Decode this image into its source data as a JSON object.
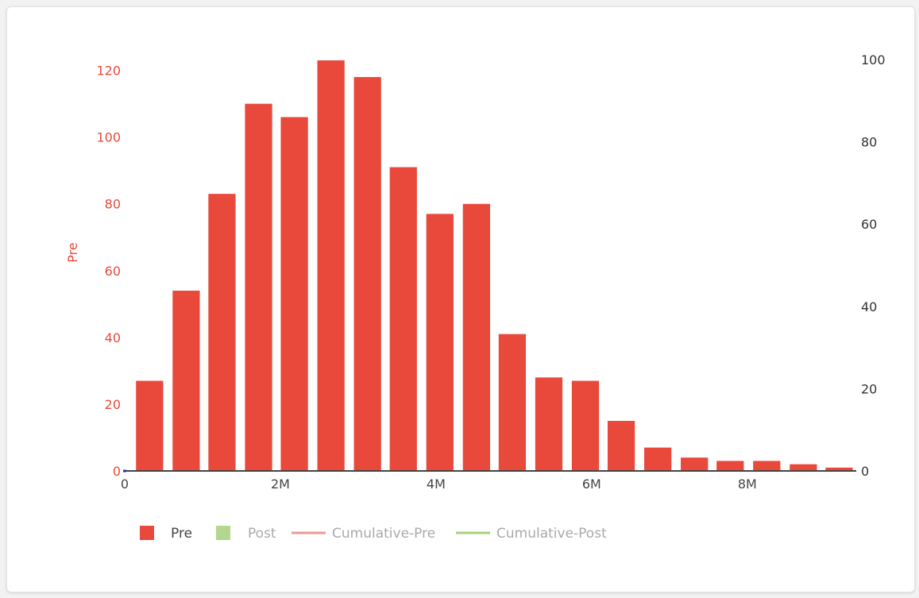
{
  "chart_data": {
    "type": "bar",
    "title": "",
    "xlabel": "",
    "ylabel": "Pre",
    "y2label": "",
    "x_bin_width": 460000,
    "x_bin_centers": [
      320000,
      790000,
      1250000,
      1720000,
      2180000,
      2650000,
      3120000,
      3580000,
      4050000,
      4520000,
      4980000,
      5450000,
      5920000,
      6380000,
      6850000,
      7320000,
      7780000,
      8250000,
      8720000,
      9180000
    ],
    "series": [
      {
        "name": "Pre",
        "type": "bar",
        "color": "#e8493b",
        "visible": true,
        "values": [
          27,
          54,
          83,
          110,
          106,
          123,
          118,
          91,
          77,
          80,
          41,
          28,
          27,
          15,
          7,
          4,
          3,
          3,
          2,
          1
        ]
      },
      {
        "name": "Post",
        "type": "bar",
        "color": "#b5d68f",
        "visible": false,
        "values": []
      },
      {
        "name": "Cumulative-Pre",
        "type": "line",
        "color": "#eb9a93",
        "visible": false,
        "values": []
      },
      {
        "name": "Cumulative-Post",
        "type": "line",
        "color": "#a8d07a",
        "visible": false,
        "values": []
      }
    ],
    "xlim": [
      0,
      9400000
    ],
    "x_ticks": [
      {
        "v": 0,
        "label": "0"
      },
      {
        "v": 2000000,
        "label": "2M"
      },
      {
        "v": 4000000,
        "label": "4M"
      },
      {
        "v": 6000000,
        "label": "6M"
      },
      {
        "v": 8000000,
        "label": "8M"
      }
    ],
    "ylim": [
      0,
      123
    ],
    "y_ticks": [
      {
        "v": 0,
        "label": "0"
      },
      {
        "v": 20,
        "label": "20"
      },
      {
        "v": 40,
        "label": "40"
      },
      {
        "v": 60,
        "label": "60"
      },
      {
        "v": 80,
        "label": "80"
      },
      {
        "v": 100,
        "label": "100"
      },
      {
        "v": 120,
        "label": "120"
      }
    ],
    "y2lim": [
      0,
      100
    ],
    "y2_ticks": [
      {
        "v": 0,
        "label": "0"
      },
      {
        "v": 20,
        "label": "20"
      },
      {
        "v": 40,
        "label": "40"
      },
      {
        "v": 60,
        "label": "60"
      },
      {
        "v": 80,
        "label": "80"
      },
      {
        "v": 100,
        "label": "100"
      }
    ],
    "grid": false,
    "legend_position": "bottom-left",
    "colors": {
      "axis_left": "#e8493b",
      "axis_right": "#333333",
      "axis_x": "#444444",
      "legend_hidden_text": "#aaaaaa",
      "legend_visible_text": "#444444"
    }
  }
}
